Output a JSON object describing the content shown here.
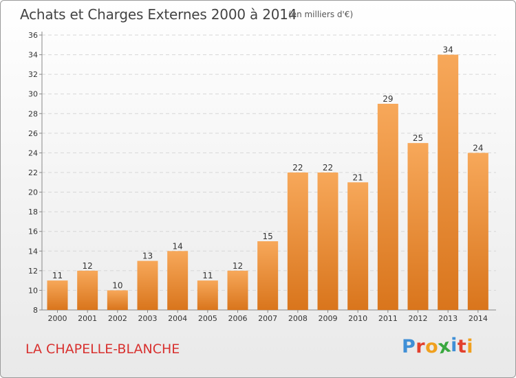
{
  "header": {
    "title": "Achats et Charges Externes 2000 à 2014",
    "subtitle": "(en milliers d'€)"
  },
  "footer": {
    "commune": "LA CHAPELLE-BLANCHE",
    "logo_text": "Proxiti"
  },
  "colors": {
    "bar_light": "#f7a85a",
    "bar_dark": "#d9751c",
    "commune_text": "#d8302e",
    "logo_letters": [
      "#3f8fd6",
      "#e2402d",
      "#f0a01e",
      "#39a83f",
      "#3f8fd6",
      "#e2402d",
      "#f0a01e"
    ]
  },
  "chart_data": {
    "type": "bar",
    "title": "Achats et Charges Externes 2000 à 2014",
    "subtitle": "(en milliers d'€)",
    "categories": [
      "2000",
      "2001",
      "2002",
      "2003",
      "2004",
      "2005",
      "2006",
      "2007",
      "2008",
      "2009",
      "2010",
      "2011",
      "2012",
      "2013",
      "2014"
    ],
    "values": [
      11,
      12,
      10,
      13,
      14,
      11,
      12,
      15,
      22,
      22,
      21,
      29,
      25,
      34,
      24
    ],
    "ylim": [
      8,
      36
    ],
    "yticks": [
      8,
      10,
      12,
      14,
      16,
      18,
      20,
      22,
      24,
      26,
      28,
      30,
      32,
      34,
      36
    ],
    "grid": true,
    "data_labels": true
  }
}
